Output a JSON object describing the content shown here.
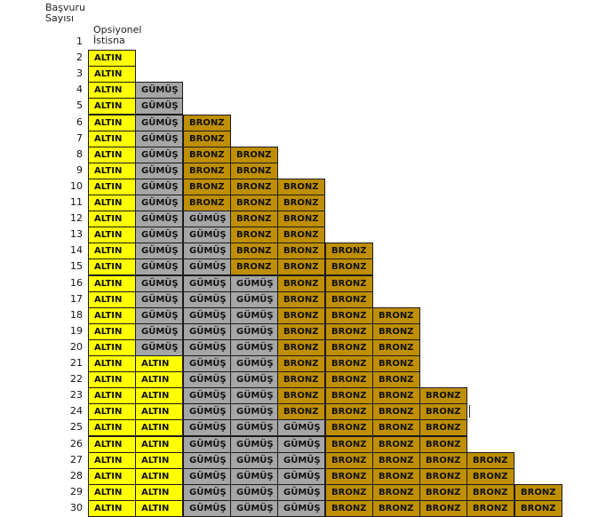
{
  "header": {
    "applications_label": "Başvuru\nSayısı",
    "optional_exception_label": "Opsiyonel\nİstisna"
  },
  "legend_colors": {
    "ALTIN": "#ffff00",
    "GÜMÜŞ": "#a6a6a6",
    "BRONZ": "#bf8f00"
  },
  "rows": [
    {
      "n": "1",
      "cells": []
    },
    {
      "n": "2",
      "cells": [
        "ALTIN"
      ]
    },
    {
      "n": "3",
      "cells": [
        "ALTIN"
      ]
    },
    {
      "n": "4",
      "cells": [
        "ALTIN",
        "GÜMÜŞ"
      ]
    },
    {
      "n": "5",
      "cells": [
        "ALTIN",
        "GÜMÜŞ"
      ]
    },
    {
      "n": "6",
      "cells": [
        "ALTIN",
        "GÜMÜŞ",
        "BRONZ"
      ]
    },
    {
      "n": "7",
      "cells": [
        "ALTIN",
        "GÜMÜŞ",
        "BRONZ"
      ]
    },
    {
      "n": "8",
      "cells": [
        "ALTIN",
        "GÜMÜŞ",
        "BRONZ",
        "BRONZ"
      ]
    },
    {
      "n": "9",
      "cells": [
        "ALTIN",
        "GÜMÜŞ",
        "BRONZ",
        "BRONZ"
      ]
    },
    {
      "n": "10",
      "cells": [
        "ALTIN",
        "GÜMÜŞ",
        "BRONZ",
        "BRONZ",
        "BRONZ"
      ]
    },
    {
      "n": "11",
      "cells": [
        "ALTIN",
        "GÜMÜŞ",
        "BRONZ",
        "BRONZ",
        "BRONZ"
      ]
    },
    {
      "n": "12",
      "cells": [
        "ALTIN",
        "GÜMÜŞ",
        "GÜMÜŞ",
        "BRONZ",
        "BRONZ"
      ]
    },
    {
      "n": "13",
      "cells": [
        "ALTIN",
        "GÜMÜŞ",
        "GÜMÜŞ",
        "BRONZ",
        "BRONZ"
      ]
    },
    {
      "n": "14",
      "cells": [
        "ALTIN",
        "GÜMÜŞ",
        "GÜMÜŞ",
        "BRONZ",
        "BRONZ",
        "BRONZ"
      ]
    },
    {
      "n": "15",
      "cells": [
        "ALTIN",
        "GÜMÜŞ",
        "GÜMÜŞ",
        "BRONZ",
        "BRONZ",
        "BRONZ"
      ]
    },
    {
      "n": "16",
      "cells": [
        "ALTIN",
        "GÜMÜŞ",
        "GÜMÜŞ",
        "GÜMÜŞ",
        "BRONZ",
        "BRONZ"
      ]
    },
    {
      "n": "17",
      "cells": [
        "ALTIN",
        "GÜMÜŞ",
        "GÜMÜŞ",
        "GÜMÜŞ",
        "BRONZ",
        "BRONZ"
      ]
    },
    {
      "n": "18",
      "cells": [
        "ALTIN",
        "GÜMÜŞ",
        "GÜMÜŞ",
        "GÜMÜŞ",
        "BRONZ",
        "BRONZ",
        "BRONZ"
      ]
    },
    {
      "n": "19",
      "cells": [
        "ALTIN",
        "GÜMÜŞ",
        "GÜMÜŞ",
        "GÜMÜŞ",
        "BRONZ",
        "BRONZ",
        "BRONZ"
      ]
    },
    {
      "n": "20",
      "cells": [
        "ALTIN",
        "GÜMÜŞ",
        "GÜMÜŞ",
        "GÜMÜŞ",
        "BRONZ",
        "BRONZ",
        "BRONZ"
      ]
    },
    {
      "n": "21",
      "cells": [
        "ALTIN",
        "ALTIN",
        "GÜMÜŞ",
        "GÜMÜŞ",
        "BRONZ",
        "BRONZ",
        "BRONZ"
      ]
    },
    {
      "n": "22",
      "cells": [
        "ALTIN",
        "ALTIN",
        "GÜMÜŞ",
        "GÜMÜŞ",
        "BRONZ",
        "BRONZ",
        "BRONZ"
      ]
    },
    {
      "n": "23",
      "cells": [
        "ALTIN",
        "ALTIN",
        "GÜMÜŞ",
        "GÜMÜŞ",
        "BRONZ",
        "BRONZ",
        "BRONZ",
        "BRONZ"
      ]
    },
    {
      "n": "24",
      "cells": [
        "ALTIN",
        "ALTIN",
        "GÜMÜŞ",
        "GÜMÜŞ",
        "BRONZ",
        "BRONZ",
        "BRONZ",
        "BRONZ"
      ]
    },
    {
      "n": "25",
      "cells": [
        "ALTIN",
        "ALTIN",
        "GÜMÜŞ",
        "GÜMÜŞ",
        "GÜMÜŞ",
        "BRONZ",
        "BRONZ",
        "BRONZ"
      ]
    },
    {
      "n": "26",
      "cells": [
        "ALTIN",
        "ALTIN",
        "GÜMÜŞ",
        "GÜMÜŞ",
        "GÜMÜŞ",
        "BRONZ",
        "BRONZ",
        "BRONZ"
      ]
    },
    {
      "n": "27",
      "cells": [
        "ALTIN",
        "ALTIN",
        "GÜMÜŞ",
        "GÜMÜŞ",
        "GÜMÜŞ",
        "BRONZ",
        "BRONZ",
        "BRONZ",
        "BRONZ"
      ]
    },
    {
      "n": "28",
      "cells": [
        "ALTIN",
        "ALTIN",
        "GÜMÜŞ",
        "GÜMÜŞ",
        "GÜMÜŞ",
        "BRONZ",
        "BRONZ",
        "BRONZ",
        "BRONZ"
      ]
    },
    {
      "n": "29",
      "cells": [
        "ALTIN",
        "ALTIN",
        "GÜMÜŞ",
        "GÜMÜŞ",
        "GÜMÜŞ",
        "BRONZ",
        "BRONZ",
        "BRONZ",
        "BRONZ",
        "BRONZ"
      ]
    },
    {
      "n": "30",
      "cells": [
        "ALTIN",
        "ALTIN",
        "GÜMÜŞ",
        "GÜMÜŞ",
        "GÜMÜŞ",
        "BRONZ",
        "BRONZ",
        "BRONZ",
        "BRONZ",
        "BRONZ"
      ]
    }
  ]
}
